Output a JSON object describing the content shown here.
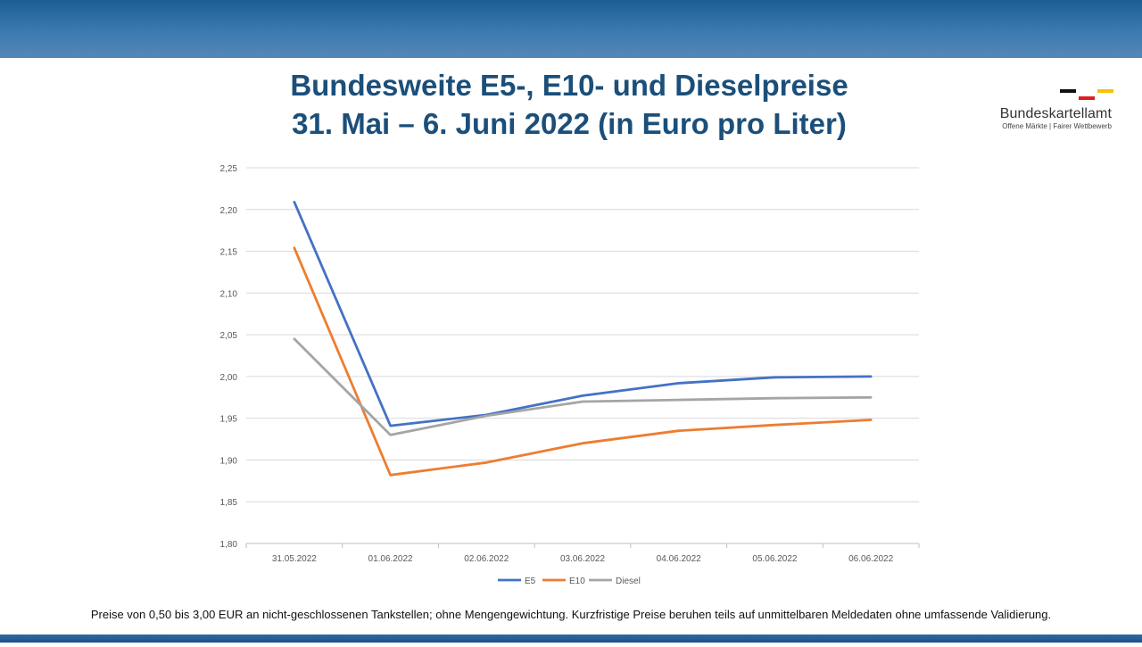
{
  "title": {
    "line1": "Bundesweite E5-, E10- und Dieselpreise",
    "line2": "31. Mai – 6. Juni 2022 (in Euro pro Liter)"
  },
  "logo": {
    "name": "Bundeskartellamt",
    "tagline": "Offene Märkte | Fairer Wettbewerb"
  },
  "colors": {
    "band": "#1b5e96",
    "e5": "#4472c4",
    "e10": "#ed7d31",
    "diesel": "#a5a5a5"
  },
  "chart_data": {
    "type": "line",
    "title": "",
    "xlabel": "",
    "ylabel": "",
    "categories": [
      "31.05.2022",
      "01.06.2022",
      "02.06.2022",
      "03.06.2022",
      "04.06.2022",
      "05.06.2022",
      "06.06.2022"
    ],
    "ylim": [
      1.8,
      2.25
    ],
    "yticks": [
      "1,80",
      "1,85",
      "1,90",
      "1,95",
      "2,00",
      "2,05",
      "2,10",
      "2,15",
      "2,20",
      "2,25"
    ],
    "ytick_values": [
      1.8,
      1.85,
      1.9,
      1.95,
      2.0,
      2.05,
      2.1,
      2.15,
      2.2,
      2.25
    ],
    "grid": true,
    "legend": "bottom-center",
    "series": [
      {
        "name": "E5",
        "color": "#4472c4",
        "values": [
          2.209,
          1.941,
          1.954,
          1.977,
          1.992,
          1.999,
          2.0
        ]
      },
      {
        "name": "E10",
        "color": "#ed7d31",
        "values": [
          2.154,
          1.882,
          1.897,
          1.92,
          1.935,
          1.942,
          1.948
        ]
      },
      {
        "name": "Diesel",
        "color": "#a5a5a5",
        "values": [
          2.045,
          1.93,
          1.953,
          1.97,
          1.972,
          1.974,
          1.975
        ]
      }
    ]
  },
  "footnote": "Preise von 0,50 bis 3,00 EUR an nicht-geschlossenen Tankstellen; ohne Mengengewichtung. Kurzfristige Preise beruhen teils auf unmittelbaren Meldedaten ohne umfassende Validierung."
}
